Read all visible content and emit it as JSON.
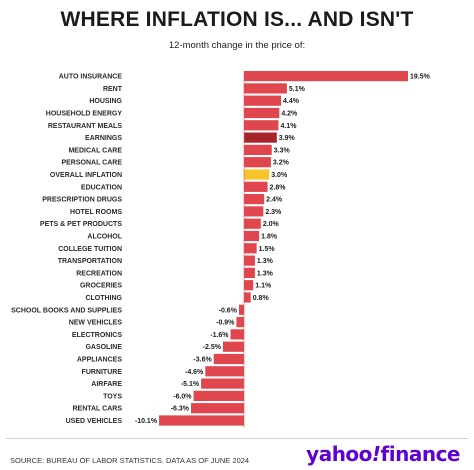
{
  "title": "WHERE INFLATION IS... AND ISN'T",
  "subtitle": "12-month change in the price of:",
  "source": "SOURCE: BUREAU OF LABOR STATISTICS. DATA AS OF JUNE 2024",
  "logo": {
    "main": "yahoo",
    "mark": "!",
    "suffix": "finance"
  },
  "colors": {
    "bar": "#e0464e",
    "earnings": "#a8242b",
    "overall_inflation": "#f8c42c"
  },
  "chart_data": {
    "type": "bar",
    "orientation": "horizontal",
    "title": "WHERE INFLATION IS... AND ISN'T",
    "subtitle": "12-month change in the price of:",
    "categories": [
      "AUTO INSURANCE",
      "RENT",
      "HOUSING",
      "HOUSEHOLD ENERGY",
      "RESTAURANT MEALS",
      "EARNINGS",
      "MEDICAL CARE",
      "PERSONAL CARE",
      "OVERALL INFLATION",
      "EDUCATION",
      "PRESCRIPTION DRUGS",
      "HOTEL ROOMS",
      "PETS & PET PRODUCTS",
      "ALCOHOL",
      "COLLEGE TUITION",
      "TRANSPORTATION",
      "RECREATION",
      "GROCERIES",
      "CLOTHING",
      "SCHOOL BOOKS AND SUPPLIES",
      "NEW VEHICLES",
      "ELECTRONICS",
      "GASOLINE",
      "APPLIANCES",
      "FURNITURE",
      "AIRFARE",
      "TOYS",
      "RENTAL CARS",
      "USED VEHICLES"
    ],
    "values": [
      19.5,
      5.1,
      4.4,
      4.2,
      4.1,
      3.9,
      3.3,
      3.2,
      3.0,
      2.8,
      2.4,
      2.3,
      2.0,
      1.8,
      1.5,
      1.3,
      1.3,
      1.1,
      0.8,
      -0.6,
      -0.9,
      -1.6,
      -2.5,
      -3.6,
      -4.6,
      -5.1,
      -6.0,
      -6.3,
      -10.1
    ],
    "labels": [
      "19.5%",
      "5.1%",
      "4.4%",
      "4.2%",
      "4.1%",
      "3.9%",
      "3.3%",
      "3.2%",
      "3.0%",
      "2.8%",
      "2.4%",
      "2.3%",
      "2.0%",
      "1.8%",
      "1.5%",
      "1.3%",
      "1.3%",
      "1.1%",
      "0.8%",
      "-0.6%",
      "-0.9%",
      "-1.6%",
      "-2.5%",
      "-3.6%",
      "-4.6%",
      "-5.1%",
      "-6.0%",
      "-6.3%",
      "-10.1%"
    ],
    "highlight": {
      "EARNINGS": "earnings",
      "OVERALL INFLATION": "overall_inflation"
    },
    "xlim": [
      -10.1,
      19.5
    ],
    "grid": false,
    "legend": "none"
  }
}
